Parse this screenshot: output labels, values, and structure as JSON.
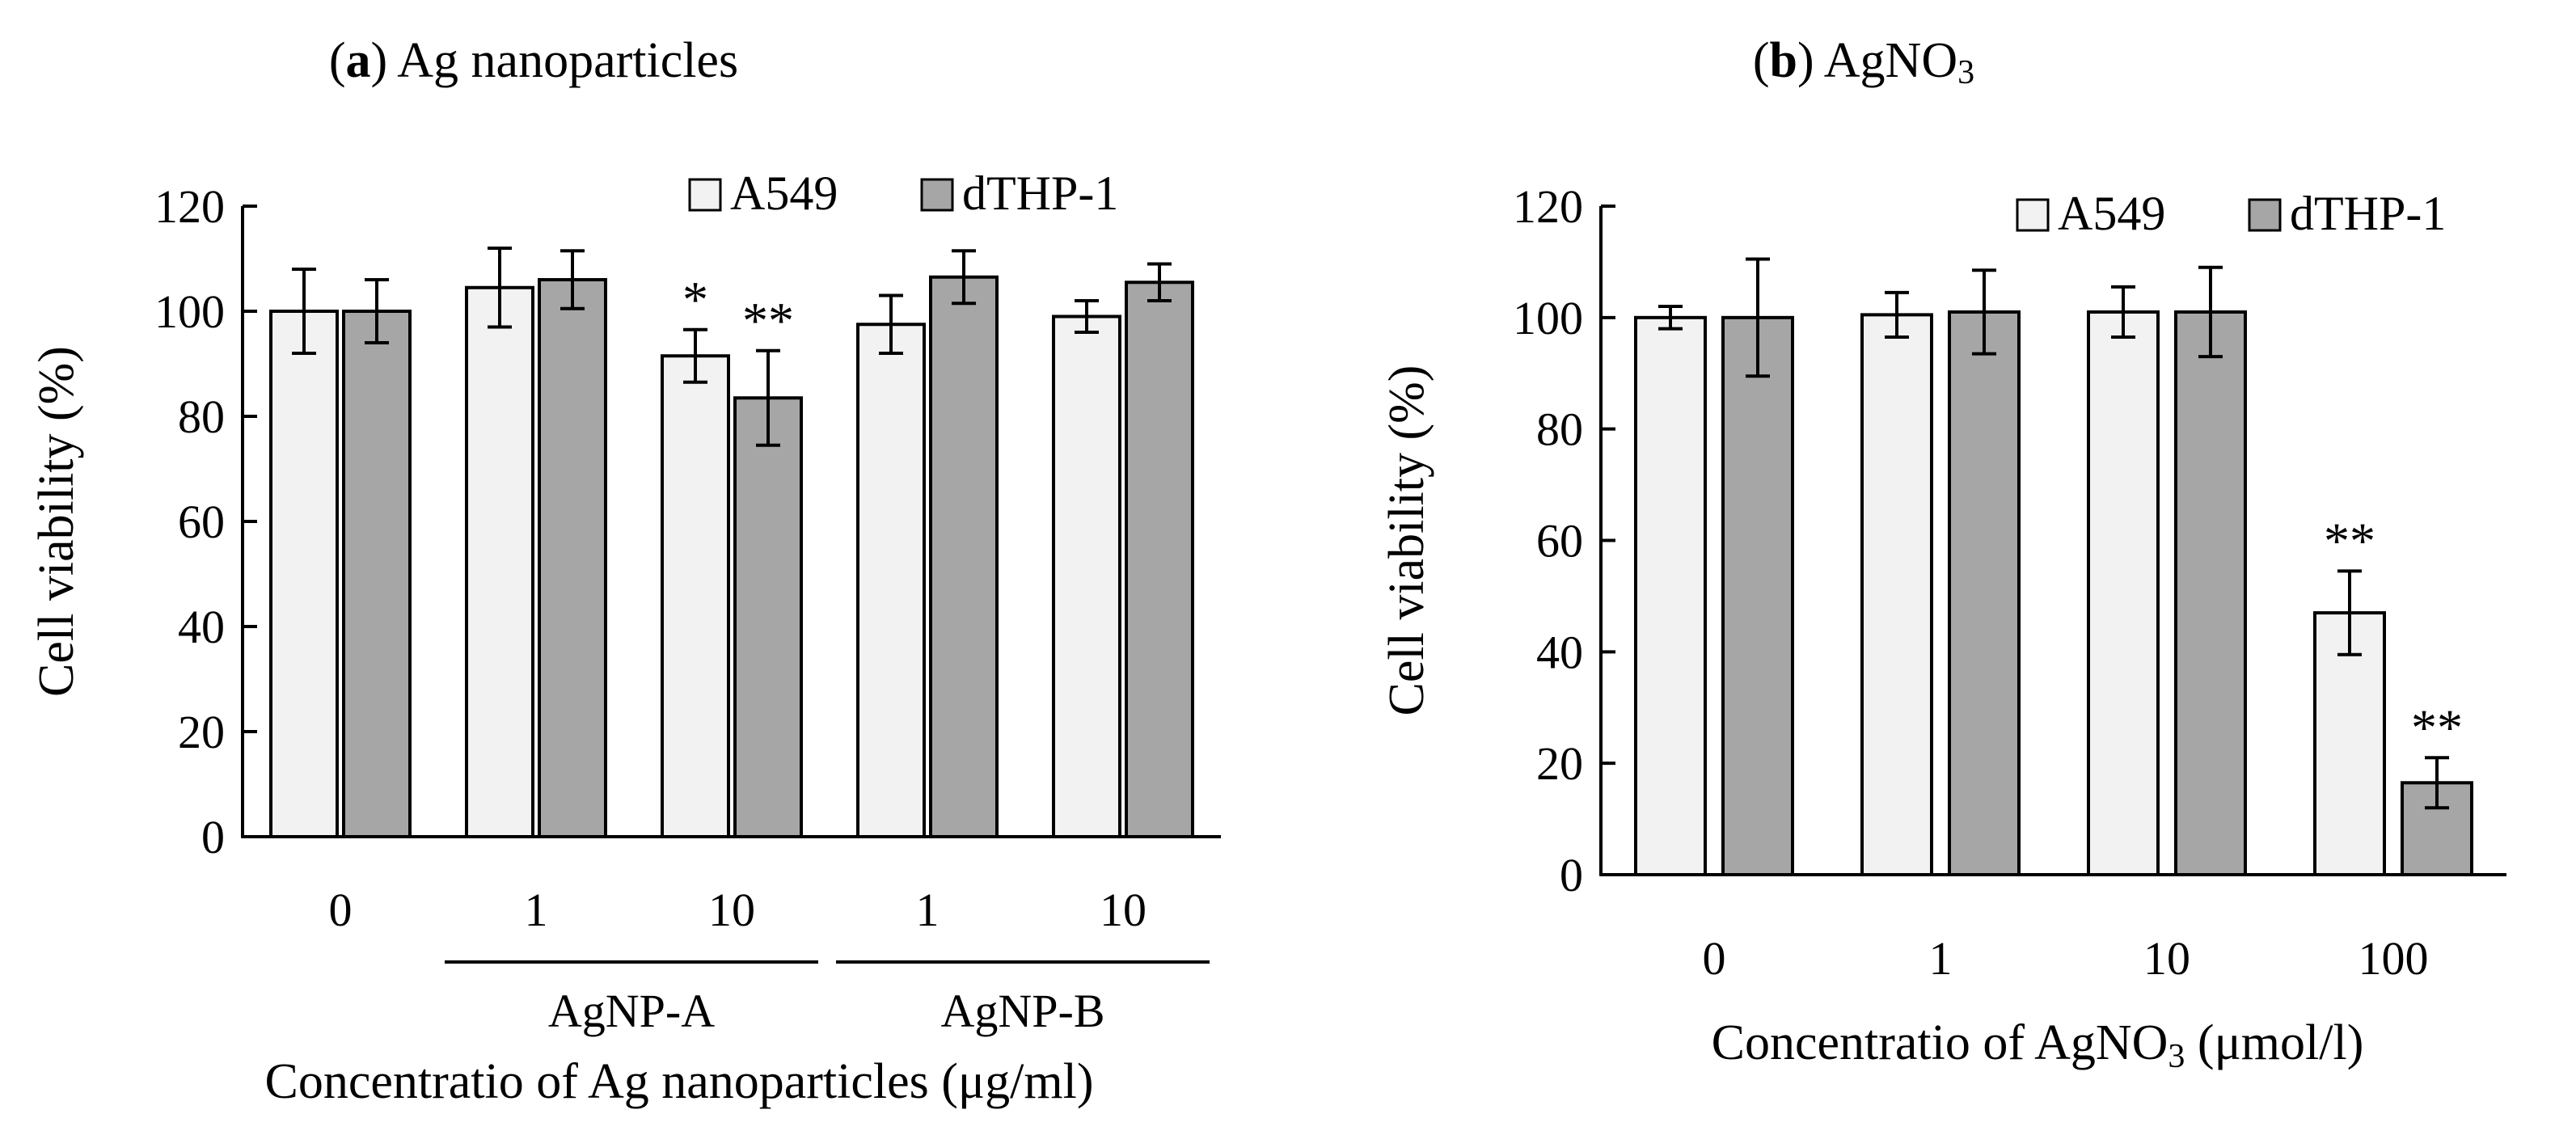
{
  "chart_data": [
    {
      "type": "bar",
      "title_bold": "a",
      "title": "Ag nanoparticles",
      "ylabel": "Cell viability (%)",
      "xlabel": "Concentratio of Ag nanoparticles (μg/ml)",
      "ylim": [
        0,
        120
      ],
      "yticks": [
        "0",
        "20",
        "40",
        "60",
        "80",
        "100",
        "120"
      ],
      "categories": [
        "0",
        "1",
        "10",
        "1",
        "10"
      ],
      "groups": [
        {
          "label": "AgNP-A",
          "from": 1,
          "to": 2
        },
        {
          "label": "AgNP-B",
          "from": 3,
          "to": 4
        }
      ],
      "legend": [
        "A549",
        "dTHP-1"
      ],
      "series": [
        {
          "name": "A549",
          "color": "#f2f2f2",
          "values": [
            100,
            104.5,
            91.5,
            97.5,
            99
          ],
          "errors": [
            8,
            7.5,
            5,
            5.5,
            3
          ],
          "stars": [
            "",
            "",
            "*",
            "",
            ""
          ]
        },
        {
          "name": "dTHP-1",
          "color": "#a6a6a6",
          "values": [
            100,
            106,
            83.5,
            106.5,
            105.5
          ],
          "errors": [
            6,
            5.5,
            9,
            5,
            3.5
          ],
          "stars": [
            "",
            "",
            "**",
            "",
            ""
          ]
        }
      ]
    },
    {
      "type": "bar",
      "title_bold": "b",
      "title": "AgNO",
      "title_sub": "3",
      "ylabel": "Cell viability (%)",
      "xlabel": "Concentratio of AgNO",
      "xlabel_sub": "3",
      "xlabel_tail": " (μmol/l)",
      "ylim": [
        0,
        120
      ],
      "yticks": [
        "0",
        "20",
        "40",
        "60",
        "80",
        "100",
        "120"
      ],
      "categories": [
        "0",
        "1",
        "10",
        "100"
      ],
      "legend": [
        "A549",
        "dTHP-1"
      ],
      "series": [
        {
          "name": "A549",
          "color": "#f2f2f2",
          "values": [
            100,
            100.5,
            101,
            47
          ],
          "errors": [
            2,
            4,
            4.5,
            7.5
          ],
          "stars": [
            "",
            "",
            "",
            "**"
          ]
        },
        {
          "name": "dTHP-1",
          "color": "#a6a6a6",
          "values": [
            100,
            101,
            101,
            16.5
          ],
          "errors": [
            10.5,
            7.5,
            8,
            4.5
          ],
          "stars": [
            "",
            "",
            "",
            "**"
          ]
        }
      ]
    }
  ]
}
